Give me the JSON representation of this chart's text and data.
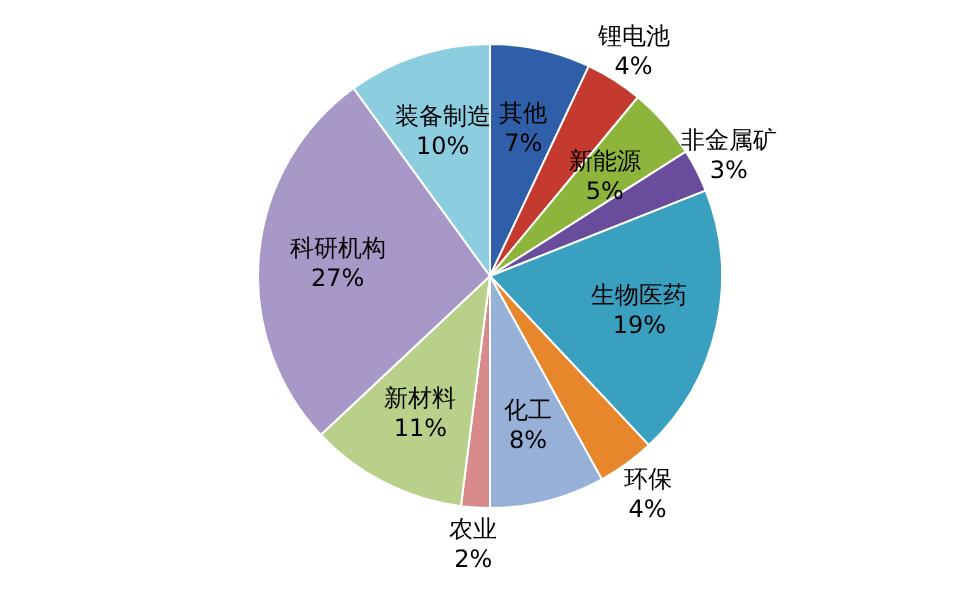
{
  "chart_data": {
    "type": "pie",
    "categories": [
      "其他",
      "锂电池",
      "新能源",
      "非金属矿",
      "生物医药",
      "环保",
      "化工",
      "农业",
      "新材料",
      "科研机构",
      "装备制造"
    ],
    "values": [
      7,
      4,
      5,
      3,
      19,
      4,
      8,
      2,
      11,
      27,
      10
    ],
    "colors": [
      "#2e5fa8",
      "#c43a2f",
      "#8db43b",
      "#6a4c9c",
      "#3aa0c0",
      "#e8862c",
      "#97b0d8",
      "#d88a8a",
      "#b8d08a",
      "#a898c8",
      "#8ccde0"
    ],
    "value_labels": [
      "7%",
      "4%",
      "5%",
      "3%",
      "19%",
      "4%",
      "8%",
      "2%",
      "11%",
      "27%",
      "10%"
    ]
  }
}
